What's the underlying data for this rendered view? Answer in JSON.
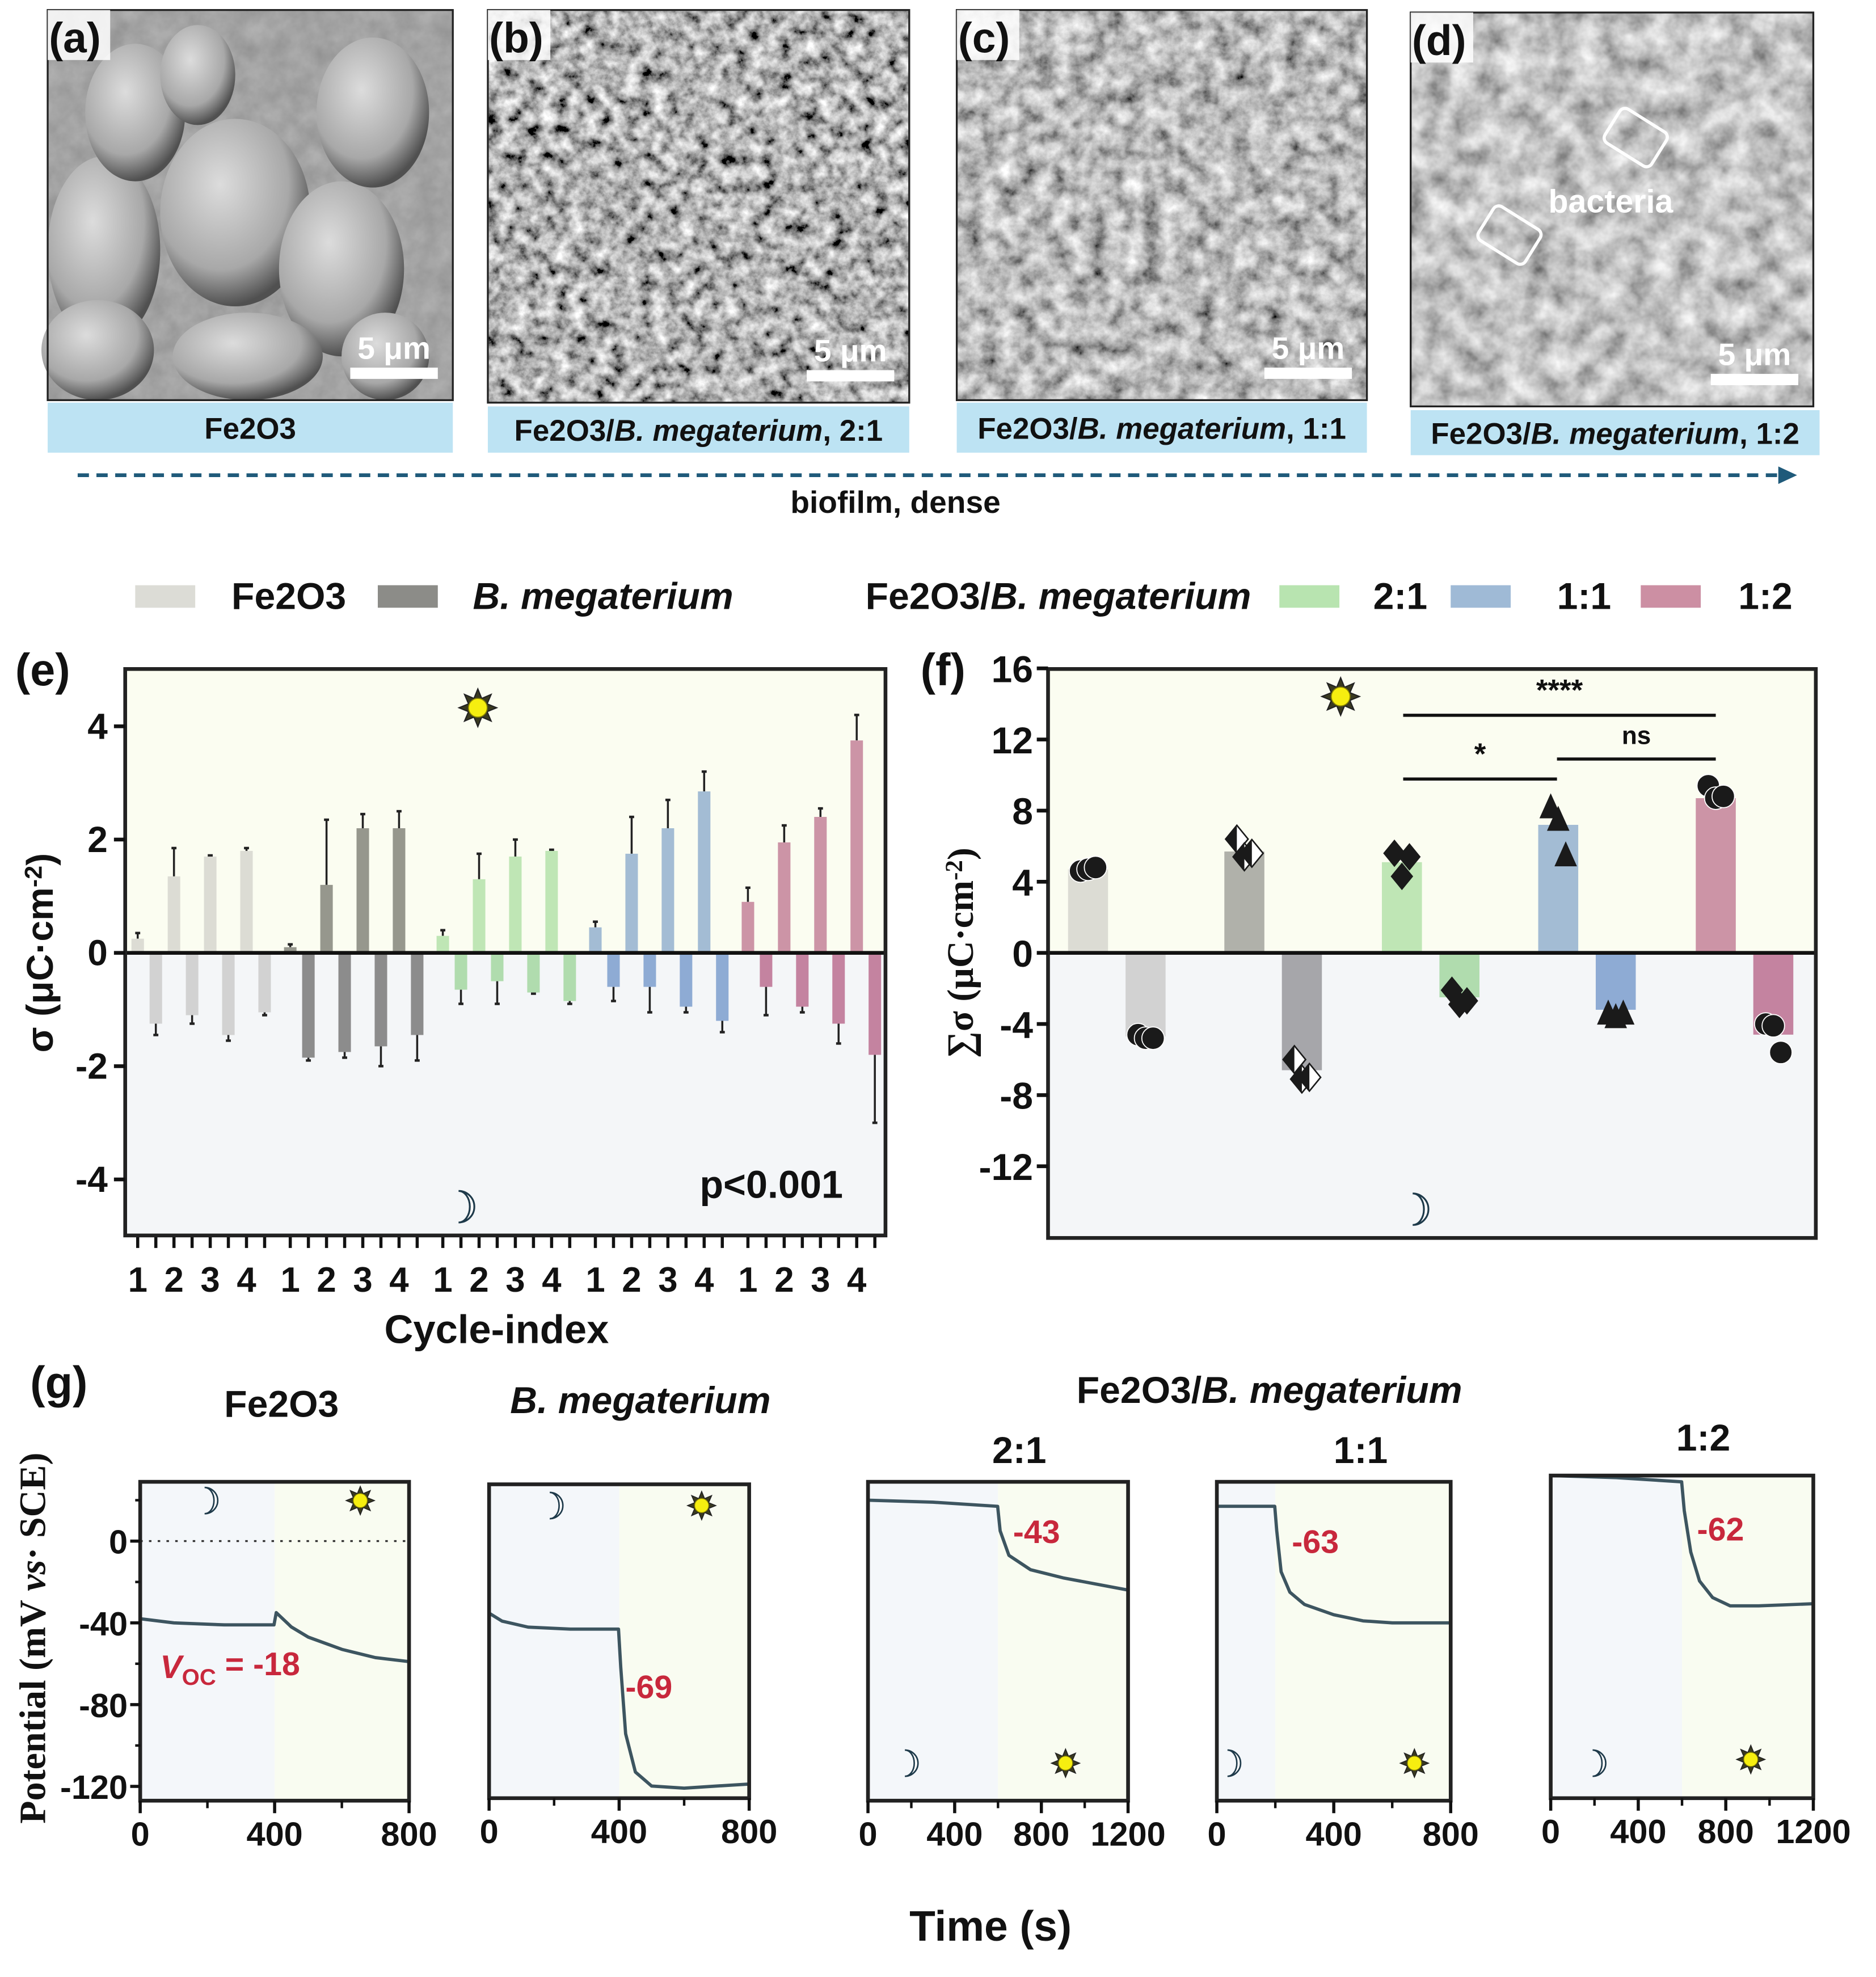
{
  "sem": [
    {
      "label": "(a)",
      "caption": {
        "formula": "Fe2O3",
        "species": "",
        "ratio": ""
      },
      "scale_bar": "5 μm"
    },
    {
      "label": "(b)",
      "caption": {
        "formula": "Fe2O3/",
        "species": "B. megaterium",
        "ratio": ", 2:1"
      },
      "scale_bar": "5 μm"
    },
    {
      "label": "(c)",
      "caption": {
        "formula": "Fe2O3/",
        "species": "B. megaterium",
        "ratio": ", 1:1"
      },
      "scale_bar": "5 μm"
    },
    {
      "label": "(d)",
      "caption": {
        "formula": "Fe2O3/",
        "species": "B. megaterium",
        "ratio": ", 1:2"
      },
      "scale_bar": "5 μm"
    }
  ],
  "bacteria_label": "bacteria",
  "trend_label": "biofilm, dense",
  "legend": {
    "items": [
      {
        "label": "Fe2O3",
        "chem": true,
        "italic": false,
        "color": "#dcdcd6"
      },
      {
        "label": "B. megaterium",
        "chem": false,
        "italic": true,
        "color": "#8c8c88"
      },
      {
        "label": "2:1",
        "chem": false,
        "italic": false,
        "color": "#b8e4b0"
      },
      {
        "label": "1:1",
        "chem": false,
        "italic": false,
        "color": "#9fbad6"
      },
      {
        "label": "1:2",
        "chem": false,
        "italic": false,
        "color": "#cc8fa3"
      }
    ],
    "group_label": {
      "formula": "Fe2O3/",
      "species": "B. megaterium"
    }
  },
  "panel_labels": {
    "e": "(e)",
    "f": "(f)",
    "g": "(g)"
  },
  "chart_data": [
    {
      "panel": "e",
      "type": "bar",
      "xlabel": "Cycle-index",
      "ylabel": {
        "text": "σ (μC·cm",
        "sup": "-2",
        "end": ")"
      },
      "ylim": [
        -5,
        5
      ],
      "yticks": [
        -4,
        -2,
        0,
        2,
        4
      ],
      "categories": [
        "1",
        "2",
        "3",
        "4"
      ],
      "annotation": "p<0.001",
      "light_icon": "sun-icon",
      "dark_icon": "moon-icon",
      "background": {
        "light": "#fbfdf1",
        "dark": "#f4f6f8"
      },
      "groups": [
        {
          "name": "Fe2O3",
          "color_light": "#dcdcd4",
          "color_dark": "#d2d2d2",
          "light": [
            0.25,
            1.35,
            1.7,
            1.8
          ],
          "light_err": [
            0.1,
            0.5,
            0.02,
            0.05
          ],
          "dark": [
            -1.25,
            -1.1,
            -1.45,
            -1.05
          ],
          "dark_err": [
            0.2,
            0.15,
            0.1,
            0.05
          ]
        },
        {
          "name": "B. megaterium",
          "color_light": "#96978d",
          "color_dark": "#8c8c8c",
          "light": [
            0.1,
            1.2,
            2.2,
            2.2
          ],
          "light_err": [
            0.05,
            1.15,
            0.25,
            0.3
          ],
          "dark": [
            -1.85,
            -1.75,
            -1.65,
            -1.45
          ],
          "dark_err": [
            0.05,
            0.1,
            0.35,
            0.45
          ]
        },
        {
          "name": "2:1",
          "color_light": "#bfe6b5",
          "color_dark": "#b0dcae",
          "light": [
            0.3,
            1.3,
            1.7,
            1.8
          ],
          "light_err": [
            0.1,
            0.45,
            0.3,
            0.02
          ],
          "dark": [
            -0.65,
            -0.5,
            -0.7,
            -0.85
          ],
          "dark_err": [
            0.25,
            0.4,
            0.02,
            0.05
          ]
        },
        {
          "name": "1:1",
          "color_light": "#a3bcd4",
          "color_dark": "#8eabd4",
          "light": [
            0.45,
            1.75,
            2.2,
            2.85
          ],
          "light_err": [
            0.1,
            0.65,
            0.5,
            0.35
          ],
          "dark": [
            -0.6,
            -0.6,
            -0.95,
            -1.2
          ],
          "dark_err": [
            0.25,
            0.45,
            0.1,
            0.2
          ]
        },
        {
          "name": "1:2",
          "color_light": "#cc94a6",
          "color_dark": "#c483a0",
          "light": [
            0.9,
            1.95,
            2.4,
            3.75
          ],
          "light_err": [
            0.25,
            0.3,
            0.15,
            0.45
          ],
          "dark": [
            -0.6,
            -0.95,
            -1.25,
            -1.8
          ],
          "dark_err": [
            0.5,
            0.1,
            0.35,
            1.2
          ]
        }
      ]
    },
    {
      "panel": "f",
      "type": "bar",
      "ylabel": {
        "text": "∑σ (μC·cm",
        "sup": "-2",
        "end": ")"
      },
      "ylim": [
        -16,
        16
      ],
      "yticks": [
        -12,
        -8,
        -4,
        0,
        4,
        8,
        12,
        16
      ],
      "background": {
        "light": "#fbfdf1",
        "dark": "#f4f6f8"
      },
      "groups": [
        {
          "name": "Fe2O3",
          "marker": "circle",
          "color_light": "#dcdcd4",
          "color_dark": "#d2d2d2",
          "light": 4.7,
          "dark": -4.7,
          "light_points": [
            4.6,
            4.7,
            4.8
          ],
          "dark_points": [
            -4.6,
            -4.8,
            -4.8
          ]
        },
        {
          "name": "B. megaterium",
          "marker": "half-diamond",
          "color_light": "#b0b1aa",
          "color_dark": "#a6a6aa",
          "light": 5.7,
          "dark": -6.6,
          "light_points": [
            6.4,
            5.4,
            5.6
          ],
          "dark_points": [
            -6.0,
            -7.1,
            -7.0
          ]
        },
        {
          "name": "2:1",
          "marker": "diamond",
          "color_light": "#bfe6b5",
          "color_dark": "#b0dcae",
          "light": 5.1,
          "dark": -2.5,
          "light_points": [
            5.6,
            4.3,
            5.4
          ],
          "dark_points": [
            -2.1,
            -2.9,
            -2.7
          ]
        },
        {
          "name": "1:1",
          "marker": "triangle",
          "color_light": "#a3bcd4",
          "color_dark": "#8eabd4",
          "light": 7.2,
          "dark": -3.2,
          "light_points": [
            8.2,
            7.5,
            5.5
          ],
          "dark_points": [
            -3.4,
            -3.6,
            -3.4
          ]
        },
        {
          "name": "1:2",
          "marker": "circle",
          "color_light": "#cc94a6",
          "color_dark": "#c483a0",
          "light": 8.7,
          "dark": -4.6,
          "light_points": [
            9.4,
            8.7,
            8.8
          ],
          "dark_points": [
            -4.0,
            -4.1,
            -5.6
          ]
        }
      ],
      "significance": [
        {
          "from": "2:1",
          "to": "1:2",
          "label": "****"
        },
        {
          "from": "2:1",
          "to": "1:1",
          "label": "*"
        },
        {
          "from": "1:1",
          "to": "1:2",
          "label": "ns"
        }
      ]
    },
    {
      "panel": "g",
      "type": "line",
      "xlabel": "Time (s)",
      "ylabel": {
        "text": "Potential (mV ",
        "ital": "vs",
        "end": "· SCE)"
      },
      "ylim": [
        -127,
        29
      ],
      "yticks": [
        -120,
        -80,
        -40,
        0
      ],
      "group_title": {
        "formula": "Fe2O3/",
        "species": "B. megaterium"
      },
      "line_color": "#3d5560",
      "subplots": [
        {
          "title": "Fe2O3",
          "chem": true,
          "italic": false,
          "xlim": [
            0,
            800
          ],
          "xticks": [
            0,
            400,
            800
          ],
          "light_on": 400,
          "zero_line": true,
          "annotation": {
            "v": "V",
            "sub": "OC",
            "rest": " = -18"
          },
          "points": [
            [
              0,
              -38
            ],
            [
              100,
              -40
            ],
            [
              250,
              -41
            ],
            [
              398,
              -41
            ],
            [
              405,
              -35
            ],
            [
              450,
              -42
            ],
            [
              500,
              -47
            ],
            [
              600,
              -53
            ],
            [
              700,
              -57
            ],
            [
              800,
              -59
            ]
          ]
        },
        {
          "title": "B. megaterium",
          "chem": false,
          "italic": true,
          "xlim": [
            0,
            800
          ],
          "xticks": [
            0,
            400,
            800
          ],
          "light_on": 400,
          "annotation": {
            "v": "",
            "sub": "",
            "rest": "-69"
          },
          "points": [
            [
              0,
              -35
            ],
            [
              40,
              -39
            ],
            [
              120,
              -42
            ],
            [
              250,
              -43
            ],
            [
              398,
              -43
            ],
            [
              405,
              -62
            ],
            [
              420,
              -95
            ],
            [
              450,
              -114
            ],
            [
              500,
              -121
            ],
            [
              600,
              -122
            ],
            [
              700,
              -121
            ],
            [
              800,
              -120
            ]
          ]
        },
        {
          "title": "2:1",
          "chem": false,
          "italic": false,
          "xlim": [
            0,
            1200
          ],
          "xticks": [
            0,
            400,
            800,
            1200
          ],
          "light_on": 600,
          "annotation": {
            "v": "",
            "sub": "",
            "rest": "-43"
          },
          "points": [
            [
              0,
              20
            ],
            [
              300,
              19
            ],
            [
              598,
              17
            ],
            [
              610,
              5
            ],
            [
              650,
              -7
            ],
            [
              750,
              -14
            ],
            [
              900,
              -18
            ],
            [
              1050,
              -21
            ],
            [
              1200,
              -24
            ]
          ]
        },
        {
          "title": "1:1",
          "chem": false,
          "italic": false,
          "xlim": [
            0,
            800
          ],
          "xticks": [
            0,
            400,
            800
          ],
          "light_on": 200,
          "annotation": {
            "v": "",
            "sub": "",
            "rest": "-63"
          },
          "points": [
            [
              0,
              17
            ],
            [
              100,
              17
            ],
            [
              198,
              17
            ],
            [
              205,
              5
            ],
            [
              220,
              -15
            ],
            [
              250,
              -25
            ],
            [
              300,
              -31
            ],
            [
              400,
              -36
            ],
            [
              500,
              -39
            ],
            [
              600,
              -40
            ],
            [
              800,
              -40
            ]
          ]
        },
        {
          "title": "1:2",
          "chem": false,
          "italic": false,
          "xlim": [
            0,
            1200
          ],
          "xticks": [
            0,
            400,
            800,
            1200
          ],
          "light_on": 600,
          "annotation": {
            "v": "",
            "sub": "",
            "rest": "-62"
          },
          "points": [
            [
              0,
              29
            ],
            [
              300,
              28
            ],
            [
              598,
              26
            ],
            [
              610,
              12
            ],
            [
              640,
              -8
            ],
            [
              680,
              -22
            ],
            [
              740,
              -30
            ],
            [
              820,
              -34
            ],
            [
              950,
              -34
            ],
            [
              1200,
              -33
            ]
          ]
        }
      ]
    }
  ]
}
